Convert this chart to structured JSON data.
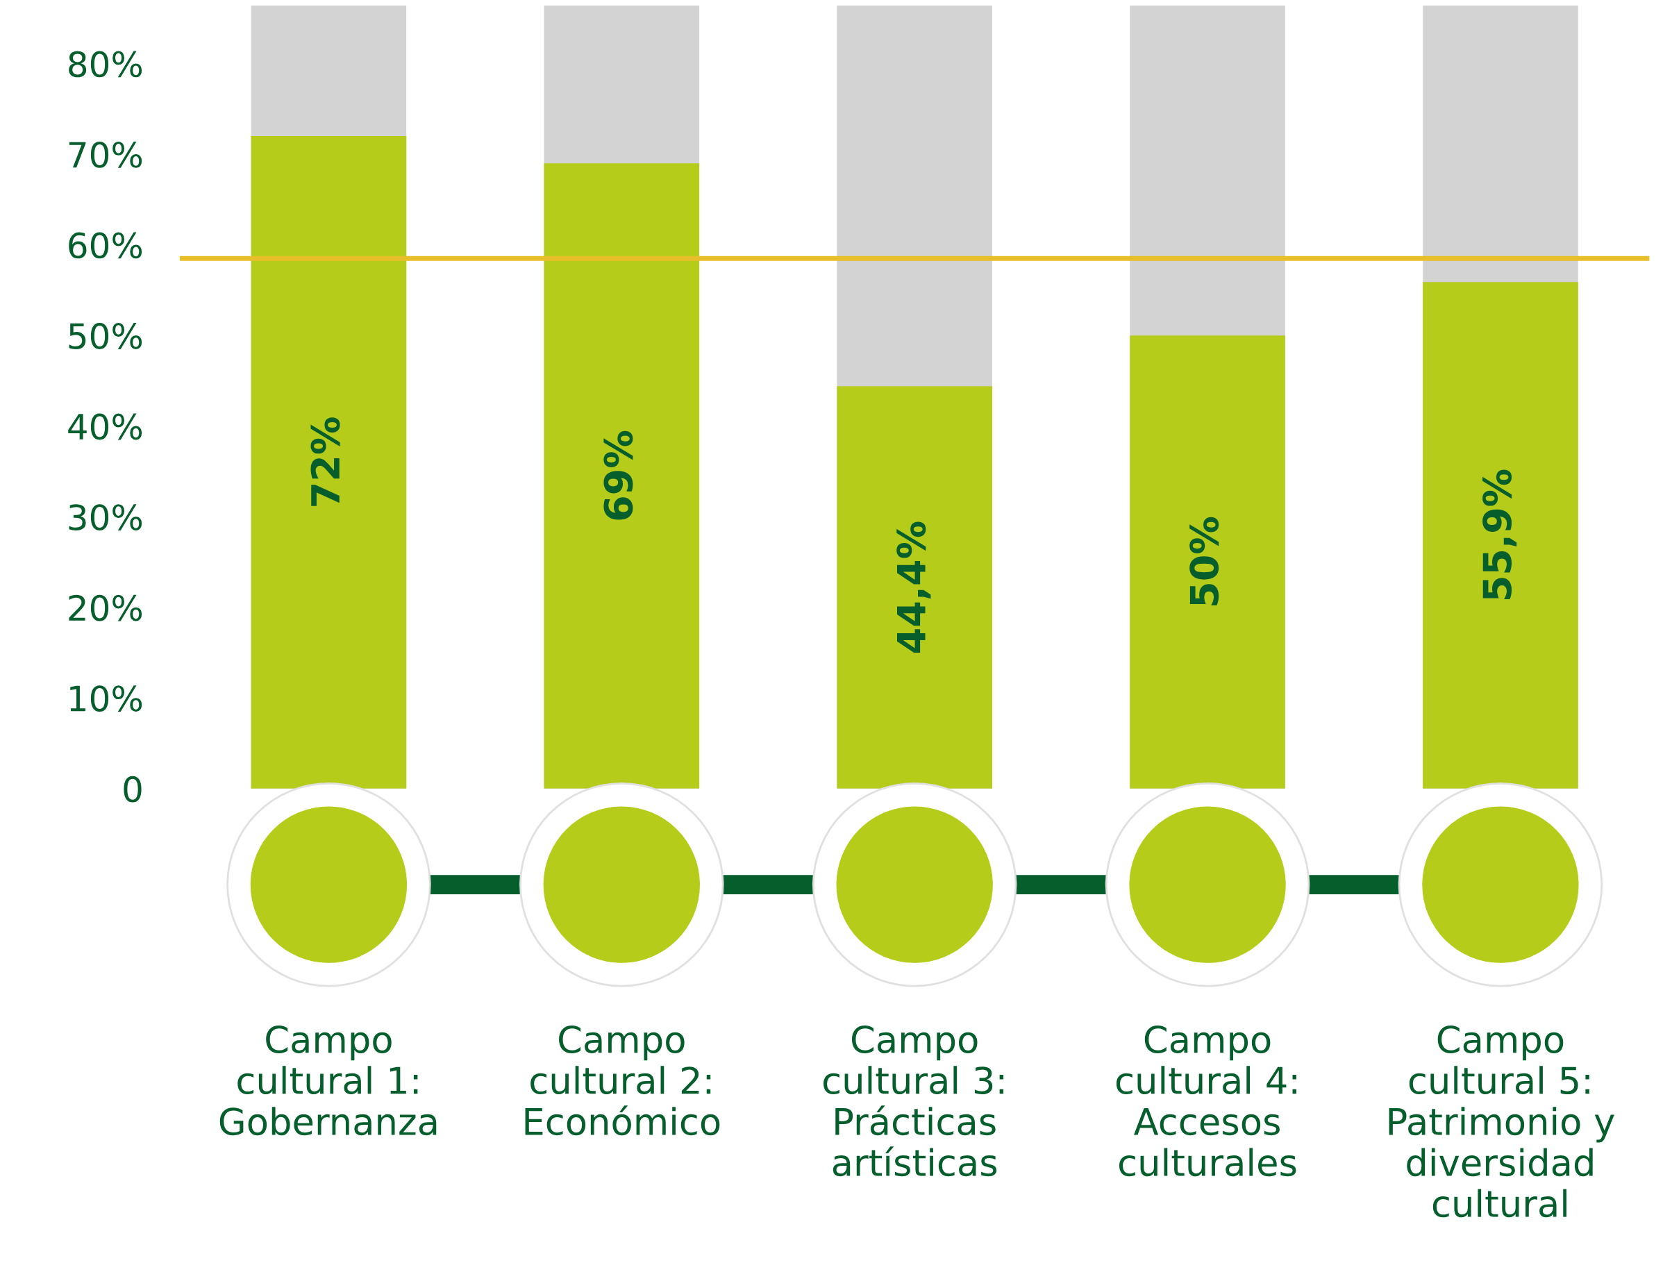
{
  "chart_data": {
    "type": "bar",
    "categories": [
      "Campo\ncultural 1:\nGobernanza",
      "Campo\ncultural 2:\nEconómico",
      "Campo\ncultural 3:\nPrácticas\nartísticas",
      "Campo\ncultural 4:\nAccesos\nculturales",
      "Campo\ncultural 5:\nPatrimonio y\ndiversidad\ncultural"
    ],
    "values": [
      72,
      69,
      44.4,
      50,
      55.9
    ],
    "color": "#b5cc1a",
    "value_labels": [
      "72%",
      "69%",
      "44,4%",
      "50%",
      "55,9%"
    ],
    "ylim": [
      0,
      80
    ],
    "yticks": [
      {
        "value": 0,
        "label": "0"
      },
      {
        "value": 10,
        "label": "10%"
      },
      {
        "value": 20,
        "label": "20%"
      },
      {
        "value": 30,
        "label": "30%"
      },
      {
        "value": 40,
        "label": "40%"
      },
      {
        "value": 50,
        "label": "50%"
      },
      {
        "value": 60,
        "label": "60%"
      },
      {
        "value": 70,
        "label": "70%"
      },
      {
        "value": 80,
        "label": "80%"
      }
    ],
    "ref_lines": [
      {
        "axis": "y",
        "value": 58.5,
        "color": "#e8be2b"
      }
    ],
    "grid": false,
    "legend": false
  }
}
